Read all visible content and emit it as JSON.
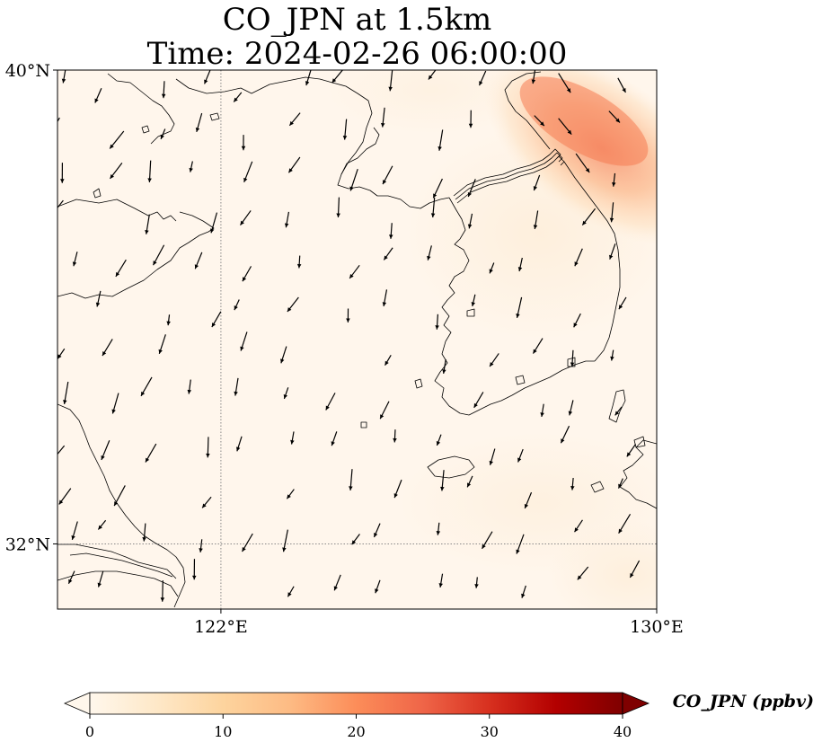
{
  "title": {
    "line1": "CO_JPN at 1.5km",
    "line2": "Time: 2024-02-26 06:00:00"
  },
  "map": {
    "extent_lon": [
      119,
      130
    ],
    "extent_lat": [
      30.9,
      40
    ],
    "lat_ticks": [
      {
        "value": 40,
        "label": "40°N",
        "gridline": false
      },
      {
        "value": 32,
        "label": "32°N",
        "gridline": true
      }
    ],
    "lon_ticks": [
      {
        "value": 122,
        "label": "122°E",
        "gridline": true
      },
      {
        "value": 130,
        "label": "130°E",
        "gridline": false
      }
    ],
    "field_name": "CO_JPN",
    "plume_peak_ppbv": 18,
    "background_ppbv": 1,
    "coastline_color": "#000000",
    "gridline_color": "#888888"
  },
  "colorbar": {
    "label": "CO_JPN (ppbv)",
    "colormap": "OrRd",
    "min": 0,
    "max": 40,
    "extend": "both",
    "ticks": [
      "0",
      "10",
      "20",
      "30",
      "40"
    ],
    "colors": [
      "#fff7ec",
      "#fee8c8",
      "#fdd49e",
      "#fdbb84",
      "#fc8d59",
      "#ef6548",
      "#d7301f",
      "#b30000",
      "#7f0000"
    ]
  },
  "wind": {
    "prevailing_direction": "southward (from north-northeast)",
    "arrow_color": "#000000"
  }
}
